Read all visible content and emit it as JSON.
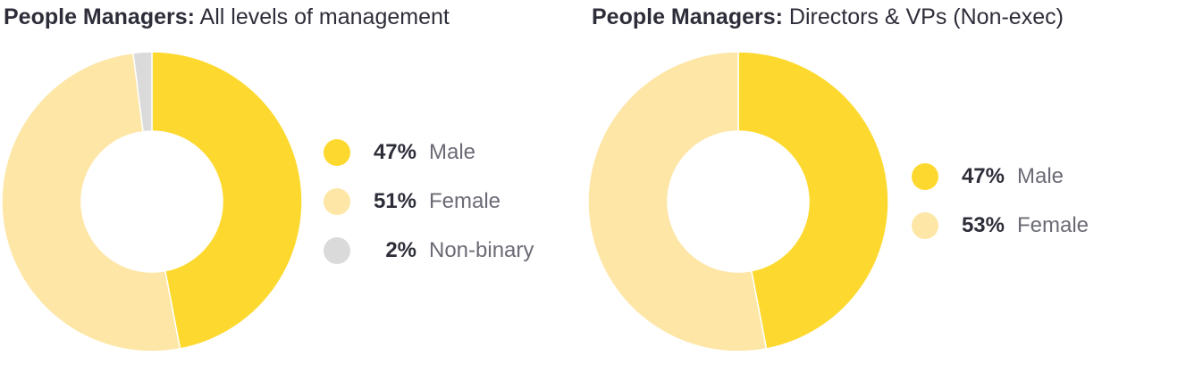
{
  "chart_data": [
    {
      "type": "pie",
      "title_bold": "People Managers:",
      "title": "All levels of management",
      "categories": [
        "Male",
        "Female",
        "Non-binary"
      ],
      "values": [
        47,
        51,
        2
      ],
      "value_labels": [
        "47%",
        "51%",
        "2%"
      ],
      "colors": [
        "#fdd930",
        "#fde6a6",
        "#dadada"
      ],
      "legend_position": "right"
    },
    {
      "type": "pie",
      "title_bold": "People Managers:",
      "title": "Directors & VPs (Non-exec)",
      "categories": [
        "Male",
        "Female"
      ],
      "values": [
        47,
        53
      ],
      "value_labels": [
        "47%",
        "53%"
      ],
      "colors": [
        "#fdd930",
        "#fde6a6"
      ],
      "legend_position": "right"
    }
  ]
}
